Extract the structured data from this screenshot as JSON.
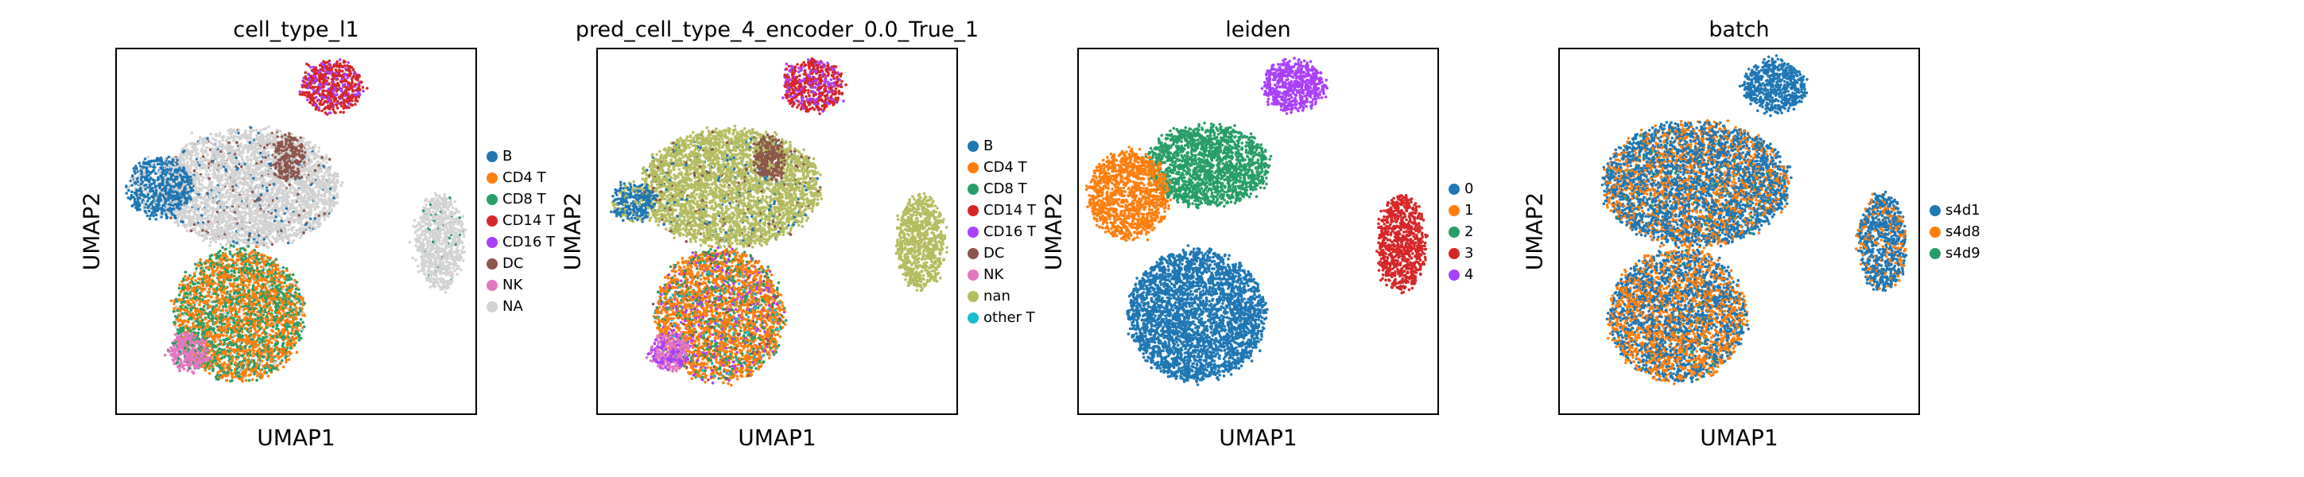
{
  "panels": [
    {
      "title": "cell_type_l1",
      "xlabel": "UMAP1",
      "ylabel": "UMAP2",
      "legend": [
        {
          "label": "B",
          "color": "#1f77b4"
        },
        {
          "label": "CD4 T",
          "color": "#ff7f0e"
        },
        {
          "label": "CD8 T",
          "color": "#279e68"
        },
        {
          "label": "CD14 T",
          "color": "#d62728"
        },
        {
          "label": "CD16 T",
          "color": "#aa40fc"
        },
        {
          "label": "DC",
          "color": "#8c564b"
        },
        {
          "label": "NK",
          "color": "#e377c2"
        },
        {
          "label": "NA",
          "color": "#d3d3d3"
        }
      ]
    },
    {
      "title": "pred_cell_type_4_encoder_0.0_True_1",
      "xlabel": "UMAP1",
      "ylabel": "UMAP2",
      "legend": [
        {
          "label": "B",
          "color": "#1f77b4"
        },
        {
          "label": "CD4 T",
          "color": "#ff7f0e"
        },
        {
          "label": "CD8 T",
          "color": "#279e68"
        },
        {
          "label": "CD14 T",
          "color": "#d62728"
        },
        {
          "label": "CD16 T",
          "color": "#aa40fc"
        },
        {
          "label": "DC",
          "color": "#8c564b"
        },
        {
          "label": "NK",
          "color": "#e377c2"
        },
        {
          "label": "nan",
          "color": "#b5bd61"
        },
        {
          "label": "other T",
          "color": "#17becf"
        }
      ]
    },
    {
      "title": "leiden",
      "xlabel": "UMAP1",
      "ylabel": "UMAP2",
      "legend": [
        {
          "label": "0",
          "color": "#1f77b4"
        },
        {
          "label": "1",
          "color": "#ff7f0e"
        },
        {
          "label": "2",
          "color": "#279e68"
        },
        {
          "label": "3",
          "color": "#d62728"
        },
        {
          "label": "4",
          "color": "#aa40fc"
        }
      ]
    },
    {
      "title": "batch",
      "xlabel": "UMAP1",
      "ylabel": "UMAP2",
      "legend": [
        {
          "label": "s4d1",
          "color": "#1f77b4"
        },
        {
          "label": "s4d8",
          "color": "#ff7f0e"
        },
        {
          "label": "s4d9",
          "color": "#279e68"
        }
      ]
    }
  ],
  "chart_data": [
    {
      "type": "scatter",
      "title": "cell_type_l1",
      "xlabel": "UMAP1",
      "ylabel": "UMAP2",
      "axis_ticks": "none",
      "legend_position": "right-outside",
      "categories": [
        "B",
        "CD4 T",
        "CD8 T",
        "CD14 T",
        "CD16 T",
        "DC",
        "NK",
        "NA"
      ],
      "clusters": [
        {
          "name": "NA",
          "x": 0.37,
          "y": 0.62,
          "rx": 0.25,
          "ry": 0.16,
          "mix": {
            "NA": 0.9,
            "B": 0.05,
            "DC": 0.05
          }
        },
        {
          "name": "B",
          "x": 0.12,
          "y": 0.62,
          "rx": 0.09,
          "ry": 0.08,
          "mix": {
            "B": 0.85,
            "NA": 0.15
          }
        },
        {
          "name": "CD14 T",
          "x": 0.6,
          "y": 0.9,
          "rx": 0.085,
          "ry": 0.07,
          "mix": {
            "CD14 T": 0.7,
            "CD16 T": 0.3
          }
        },
        {
          "name": "DC",
          "x": 0.48,
          "y": 0.7,
          "rx": 0.04,
          "ry": 0.06,
          "mix": {
            "DC": 0.9,
            "NA": 0.1
          }
        },
        {
          "name": "NA",
          "x": 0.9,
          "y": 0.47,
          "rx": 0.065,
          "ry": 0.13,
          "mix": {
            "NA": 0.95,
            "CD8 T": 0.05
          }
        },
        {
          "name": "CD4 T",
          "x": 0.34,
          "y": 0.27,
          "rx": 0.18,
          "ry": 0.18,
          "mix": {
            "CD4 T": 0.55,
            "CD8 T": 0.4,
            "NA": 0.05
          }
        },
        {
          "name": "NK",
          "x": 0.2,
          "y": 0.17,
          "rx": 0.055,
          "ry": 0.05,
          "mix": {
            "NK": 0.85,
            "CD8 T": 0.15
          }
        }
      ]
    },
    {
      "type": "scatter",
      "title": "pred_cell_type_4_encoder_0.0_True_1",
      "xlabel": "UMAP1",
      "ylabel": "UMAP2",
      "axis_ticks": "none",
      "legend_position": "right-outside",
      "categories": [
        "B",
        "CD4 T",
        "CD8 T",
        "CD14 T",
        "CD16 T",
        "DC",
        "NK",
        "nan",
        "other T"
      ],
      "clusters": [
        {
          "name": "nan",
          "x": 0.37,
          "y": 0.62,
          "rx": 0.25,
          "ry": 0.16,
          "mix": {
            "nan": 0.92,
            "B": 0.04,
            "DC": 0.04
          }
        },
        {
          "name": "B",
          "x": 0.1,
          "y": 0.58,
          "rx": 0.06,
          "ry": 0.05,
          "mix": {
            "B": 0.8,
            "nan": 0.2
          }
        },
        {
          "name": "CD14 T",
          "x": 0.6,
          "y": 0.9,
          "rx": 0.085,
          "ry": 0.07,
          "mix": {
            "CD14 T": 0.7,
            "CD16 T": 0.3
          }
        },
        {
          "name": "DC",
          "x": 0.48,
          "y": 0.7,
          "rx": 0.04,
          "ry": 0.06,
          "mix": {
            "DC": 0.85,
            "nan": 0.15
          }
        },
        {
          "name": "nan",
          "x": 0.9,
          "y": 0.47,
          "rx": 0.065,
          "ry": 0.13,
          "mix": {
            "nan": 1.0
          }
        },
        {
          "name": "CD4 T",
          "x": 0.34,
          "y": 0.27,
          "rx": 0.18,
          "ry": 0.18,
          "mix": {
            "CD4 T": 0.62,
            "CD8 T": 0.2,
            "CD16 T": 0.1,
            "DC": 0.05,
            "other T": 0.03
          }
        },
        {
          "name": "NK",
          "x": 0.2,
          "y": 0.17,
          "rx": 0.055,
          "ry": 0.05,
          "mix": {
            "NK": 0.6,
            "CD16 T": 0.4
          }
        }
      ]
    },
    {
      "type": "scatter",
      "title": "leiden",
      "xlabel": "UMAP1",
      "ylabel": "UMAP2",
      "axis_ticks": "none",
      "legend_position": "right-outside",
      "categories": [
        "0",
        "1",
        "2",
        "3",
        "4"
      ],
      "clusters": [
        {
          "name": "2",
          "x": 0.36,
          "y": 0.68,
          "rx": 0.17,
          "ry": 0.11,
          "mix": {
            "2": 1.0
          }
        },
        {
          "name": "1",
          "x": 0.14,
          "y": 0.6,
          "rx": 0.11,
          "ry": 0.12,
          "mix": {
            "1": 1.0
          }
        },
        {
          "name": "4",
          "x": 0.6,
          "y": 0.9,
          "rx": 0.085,
          "ry": 0.07,
          "mix": {
            "4": 1.0
          }
        },
        {
          "name": "3",
          "x": 0.9,
          "y": 0.47,
          "rx": 0.065,
          "ry": 0.13,
          "mix": {
            "3": 1.0
          }
        },
        {
          "name": "0",
          "x": 0.33,
          "y": 0.27,
          "rx": 0.19,
          "ry": 0.18,
          "mix": {
            "0": 1.0
          }
        }
      ]
    },
    {
      "type": "scatter",
      "title": "batch",
      "xlabel": "UMAP1",
      "ylabel": "UMAP2",
      "axis_ticks": "none",
      "legend_position": "right-outside",
      "categories": [
        "s4d1",
        "s4d8",
        "s4d9"
      ],
      "clusters": [
        {
          "name": "s4d1",
          "x": 0.38,
          "y": 0.63,
          "rx": 0.26,
          "ry": 0.17,
          "mix": {
            "s4d1": 0.65,
            "s4d8": 0.33,
            "s4d9": 0.02
          }
        },
        {
          "name": "s4d1",
          "x": 0.6,
          "y": 0.9,
          "rx": 0.085,
          "ry": 0.07,
          "mix": {
            "s4d1": 1.0
          }
        },
        {
          "name": "s4d1",
          "x": 0.9,
          "y": 0.47,
          "rx": 0.065,
          "ry": 0.13,
          "mix": {
            "s4d1": 0.75,
            "s4d8": 0.25
          }
        },
        {
          "name": "s4d8",
          "x": 0.33,
          "y": 0.27,
          "rx": 0.19,
          "ry": 0.18,
          "mix": {
            "s4d1": 0.5,
            "s4d8": 0.48,
            "s4d9": 0.02
          }
        }
      ]
    }
  ]
}
